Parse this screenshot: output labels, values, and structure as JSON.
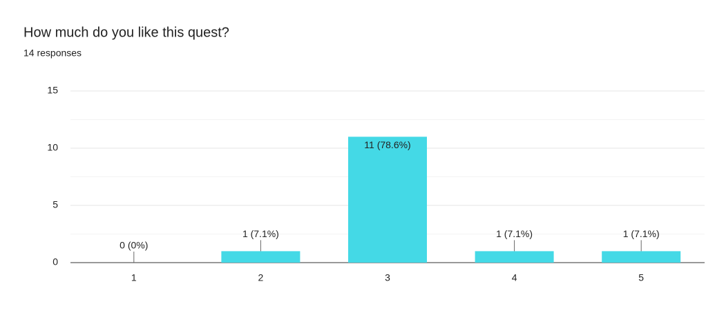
{
  "chart_data": {
    "type": "bar",
    "title": "How much do you like this quest?",
    "subtitle": "14 responses",
    "categories": [
      "1",
      "2",
      "3",
      "4",
      "5"
    ],
    "values": [
      0,
      1,
      11,
      1,
      1
    ],
    "value_labels": [
      "0 (0%)",
      "1 (7.1%)",
      "11 (78.6%)",
      "1 (7.1%)",
      "1 (7.1%)"
    ],
    "color": "#44d9e6",
    "ylim": [
      0,
      15
    ],
    "yticks": [
      0,
      5,
      10,
      15
    ],
    "minor_yticks": [
      2.5,
      7.5,
      12.5
    ],
    "grid": true
  }
}
